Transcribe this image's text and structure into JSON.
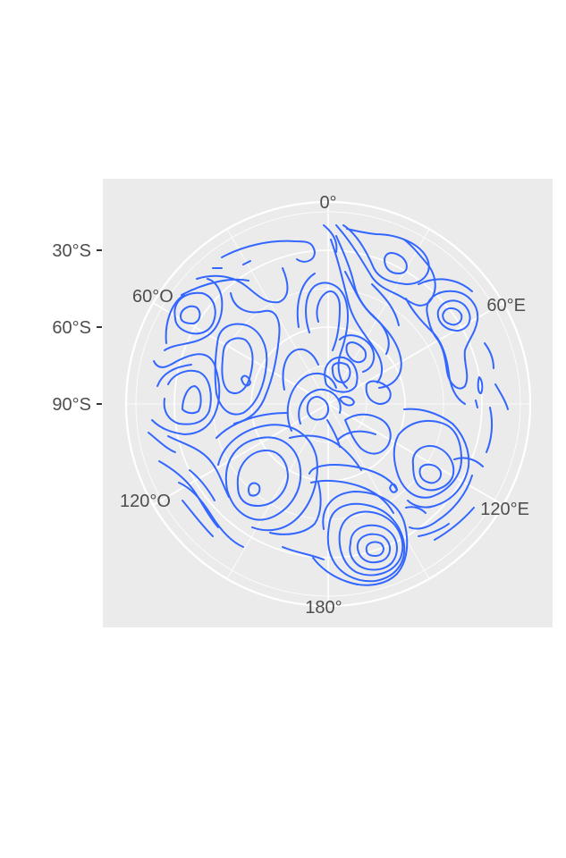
{
  "chart_data": {
    "type": "contour",
    "projection": "polar",
    "title": "",
    "xlabel": "",
    "ylabel": "",
    "longitude_labels": [
      {
        "label": "0°",
        "lon": 0
      },
      {
        "label": "60°E",
        "lon": 60
      },
      {
        "label": "120°E",
        "lon": 120
      },
      {
        "label": "180°",
        "lon": 180
      },
      {
        "label": "120°O",
        "lon": -120
      },
      {
        "label": "60°O",
        "lon": -60
      }
    ],
    "latitude_labels": [
      {
        "label": "30°S",
        "lat": -30
      },
      {
        "label": "60°S",
        "lat": -60
      },
      {
        "label": "90°S",
        "lat": -90
      }
    ],
    "line_color": "#3366FF",
    "panel_background": "#EBEBEB",
    "grid_color": "#FFFFFF",
    "grid": true,
    "legend": "none"
  }
}
